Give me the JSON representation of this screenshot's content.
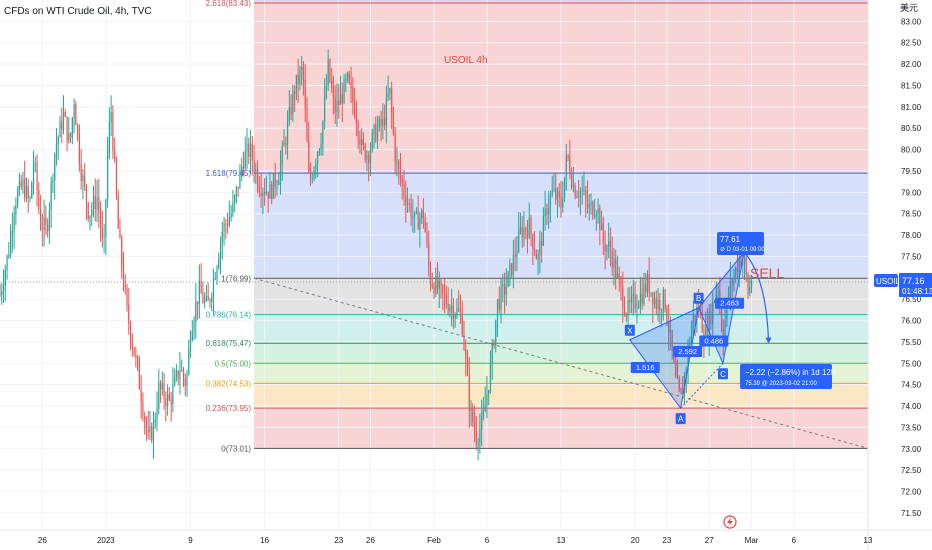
{
  "header": {
    "title": "CFDs on WTI Crude Oil, 4h, TVC"
  },
  "chart_data": {
    "type": "candlestick",
    "symbol": "USOIL",
    "timeframe": "4h",
    "annotation_title": "USOIL 4h",
    "currency_label": "美元",
    "y_ticks": [
      "71.50",
      "72.00",
      "72.50",
      "73.00",
      "73.50",
      "74.00",
      "74.50",
      "75.00",
      "75.50",
      "76.00",
      "76.50",
      "77.00",
      "77.50",
      "78.00",
      "78.50",
      "79.00",
      "79.50",
      "80.00",
      "80.50",
      "81.00",
      "81.50",
      "82.00",
      "82.50",
      "83.00"
    ],
    "ylim": [
      71.1,
      83.5
    ],
    "x_ticks": [
      {
        "label": "26",
        "day": -7
      },
      {
        "label": "2023",
        "day": -1
      },
      {
        "label": "9",
        "day": 7
      },
      {
        "label": "16",
        "day": 14
      },
      {
        "label": "23",
        "day": 21
      },
      {
        "label": "26",
        "day": 24
      },
      {
        "label": "Feb",
        "day": 30
      },
      {
        "label": "6",
        "day": 35
      },
      {
        "label": "13",
        "day": 42
      },
      {
        "label": "20",
        "day": 49
      },
      {
        "label": "23",
        "day": 52
      },
      {
        "label": "27",
        "day": 56
      },
      {
        "label": "Mar",
        "day": 60
      },
      {
        "label": "6",
        "day": 64
      },
      {
        "label": "13",
        "day": 71
      }
    ],
    "xlim": [
      -11,
      71
    ],
    "last_price": "77.16",
    "countdown": "01:48:13",
    "fib_levels": [
      {
        "ratio": "2.618",
        "price": 83.43,
        "label": "2.618(83.43)",
        "band_color": "#e8d3ee",
        "line_color": "#d2555c"
      },
      {
        "ratio": "1.618",
        "price": 79.45,
        "label": "1.618(79.45)",
        "band_color": "#f8d4d5",
        "line_color": "#3b5bdb"
      },
      {
        "ratio": "1",
        "price": 76.99,
        "label": "1(76.99)",
        "band_color": "#d6e0fb",
        "line_color": "#555555"
      },
      {
        "ratio": "0.786",
        "price": 76.14,
        "label": "0.786(76.14)",
        "band_color": "#e3e3e3",
        "line_color": "#20b2aa"
      },
      {
        "ratio": "0.618",
        "price": 75.47,
        "label": "0.618(75.47)",
        "band_color": "#d0f0ee",
        "line_color": "#2e8b57"
      },
      {
        "ratio": "0.5",
        "price": 75.0,
        "label": "0.5(75.00)",
        "band_color": "#d3f2e1",
        "line_color": "#4caf50"
      },
      {
        "ratio": "0.382",
        "price": 74.53,
        "label": "0.382(74.53)",
        "band_color": "#e5f3d5",
        "line_color": "#e6a700"
      },
      {
        "ratio": "0.236",
        "price": 73.95,
        "label": "0.236(73.95)",
        "band_color": "#fbe7c4",
        "line_color": "#d2555c"
      },
      {
        "ratio": "0",
        "price": 73.01,
        "label": "0(73.01)",
        "band_color": "#f8d4d5",
        "line_color": "#555555"
      }
    ],
    "harmonic_points": [
      {
        "label": "X",
        "day": 48.5,
        "price": 75.55
      },
      {
        "label": "A",
        "day": 53.3,
        "price": 73.95
      },
      {
        "label": "B",
        "day": 55.0,
        "price": 76.3
      },
      {
        "label": "C",
        "day": 57.3,
        "price": 75.0
      },
      {
        "label": "D",
        "day": 59.3,
        "price": 77.6
      }
    ],
    "harmonic_ratios": [
      "1.516",
      "2.592",
      "0.486",
      "2.463"
    ],
    "sell_label": "SELL",
    "target_box": {
      "line1": "−2.22 (−2.86%) in 1d 12h",
      "line2": "75.39 @ 2023-03-02  21:00"
    },
    "d_box": {
      "line1": "77.61",
      "line2": "⊘ D  03-01 09:00"
    },
    "colors": {
      "up": "#26a69a",
      "down": "#ef5350",
      "accent": "#2962ff"
    },
    "candle_path": [
      [
        -11,
        76.6
      ],
      [
        -10.2,
        77.6
      ],
      [
        -9.6,
        78.8
      ],
      [
        -8.8,
        79.2
      ],
      [
        -8.2,
        78.7
      ],
      [
        -7.8,
        79.8
      ],
      [
        -7.2,
        78.3
      ],
      [
        -6.6,
        78.1
      ],
      [
        -5.8,
        80.0
      ],
      [
        -5.0,
        80.8
      ],
      [
        -4.4,
        80.1
      ],
      [
        -4.0,
        81.2
      ],
      [
        -3.4,
        79.6
      ],
      [
        -2.6,
        78.5
      ],
      [
        -1.8,
        78.9
      ],
      [
        -1.2,
        77.5
      ],
      [
        -0.8,
        80.2
      ],
      [
        -0.5,
        80.9
      ],
      [
        0.2,
        78.0
      ],
      [
        1.0,
        76.2
      ],
      [
        2.0,
        74.8
      ],
      [
        3.0,
        73.2
      ],
      [
        3.5,
        73.5
      ],
      [
        4.0,
        74.4
      ],
      [
        5.0,
        74.1
      ],
      [
        6.0,
        74.9
      ],
      [
        6.6,
        74.5
      ],
      [
        7.0,
        75.8
      ],
      [
        7.8,
        76.7
      ],
      [
        8.6,
        76.3
      ],
      [
        9.2,
        77.0
      ],
      [
        10.0,
        78.1
      ],
      [
        11.0,
        78.6
      ],
      [
        12.0,
        79.8
      ],
      [
        12.6,
        80.0
      ],
      [
        13.5,
        79.2
      ],
      [
        14.5,
        79.0
      ],
      [
        15.4,
        79.5
      ],
      [
        16.0,
        80.3
      ],
      [
        16.8,
        81.4
      ],
      [
        17.6,
        81.9
      ],
      [
        18.2,
        79.2
      ],
      [
        18.8,
        79.8
      ],
      [
        19.4,
        80.4
      ],
      [
        20.0,
        81.9
      ],
      [
        20.6,
        80.9
      ],
      [
        21.2,
        81.2
      ],
      [
        21.8,
        81.6
      ],
      [
        22.6,
        80.9
      ],
      [
        23.2,
        80.0
      ],
      [
        23.8,
        79.9
      ],
      [
        24.4,
        80.4
      ],
      [
        25.2,
        80.6
      ],
      [
        25.8,
        81.4
      ],
      [
        26.4,
        79.7
      ],
      [
        27.2,
        79.0
      ],
      [
        28.2,
        78.3
      ],
      [
        29.0,
        78.5
      ],
      [
        29.6,
        77.0
      ],
      [
        30.2,
        76.8
      ],
      [
        31.0,
        76.5
      ],
      [
        31.8,
        76.3
      ],
      [
        32.6,
        76.1
      ],
      [
        33.4,
        73.9
      ],
      [
        34.0,
        73.3
      ],
      [
        34.6,
        73.6
      ],
      [
        35.4,
        75.0
      ],
      [
        36.0,
        76.4
      ],
      [
        36.8,
        76.8
      ],
      [
        37.6,
        77.5
      ],
      [
        38.2,
        78.1
      ],
      [
        39.0,
        78.2
      ],
      [
        39.8,
        77.4
      ],
      [
        40.6,
        78.6
      ],
      [
        41.2,
        79.0
      ],
      [
        42.0,
        78.7
      ],
      [
        42.6,
        79.9
      ],
      [
        43.2,
        79.1
      ],
      [
        44.0,
        79.0
      ],
      [
        44.6,
        78.6
      ],
      [
        45.4,
        78.7
      ],
      [
        46.0,
        77.8
      ],
      [
        46.6,
        77.7
      ],
      [
        47.4,
        76.9
      ],
      [
        48.2,
        76.2
      ],
      [
        48.8,
        76.4
      ],
      [
        49.6,
        76.6
      ],
      [
        50.2,
        76.9
      ],
      [
        51.0,
        76.4
      ],
      [
        51.8,
        76.5
      ],
      [
        52.4,
        75.4
      ],
      [
        52.8,
        74.6
      ],
      [
        53.3,
        74.1
      ],
      [
        53.8,
        74.9
      ],
      [
        54.4,
        76.0
      ],
      [
        55.0,
        76.3
      ],
      [
        55.6,
        75.6
      ],
      [
        56.2,
        76.2
      ],
      [
        56.8,
        76.9
      ],
      [
        57.3,
        75.6
      ],
      [
        57.8,
        76.6
      ],
      [
        58.4,
        77.1
      ],
      [
        58.9,
        77.5
      ],
      [
        59.3,
        77.4
      ],
      [
        59.7,
        76.6
      ],
      [
        60.1,
        77.16
      ]
    ]
  }
}
